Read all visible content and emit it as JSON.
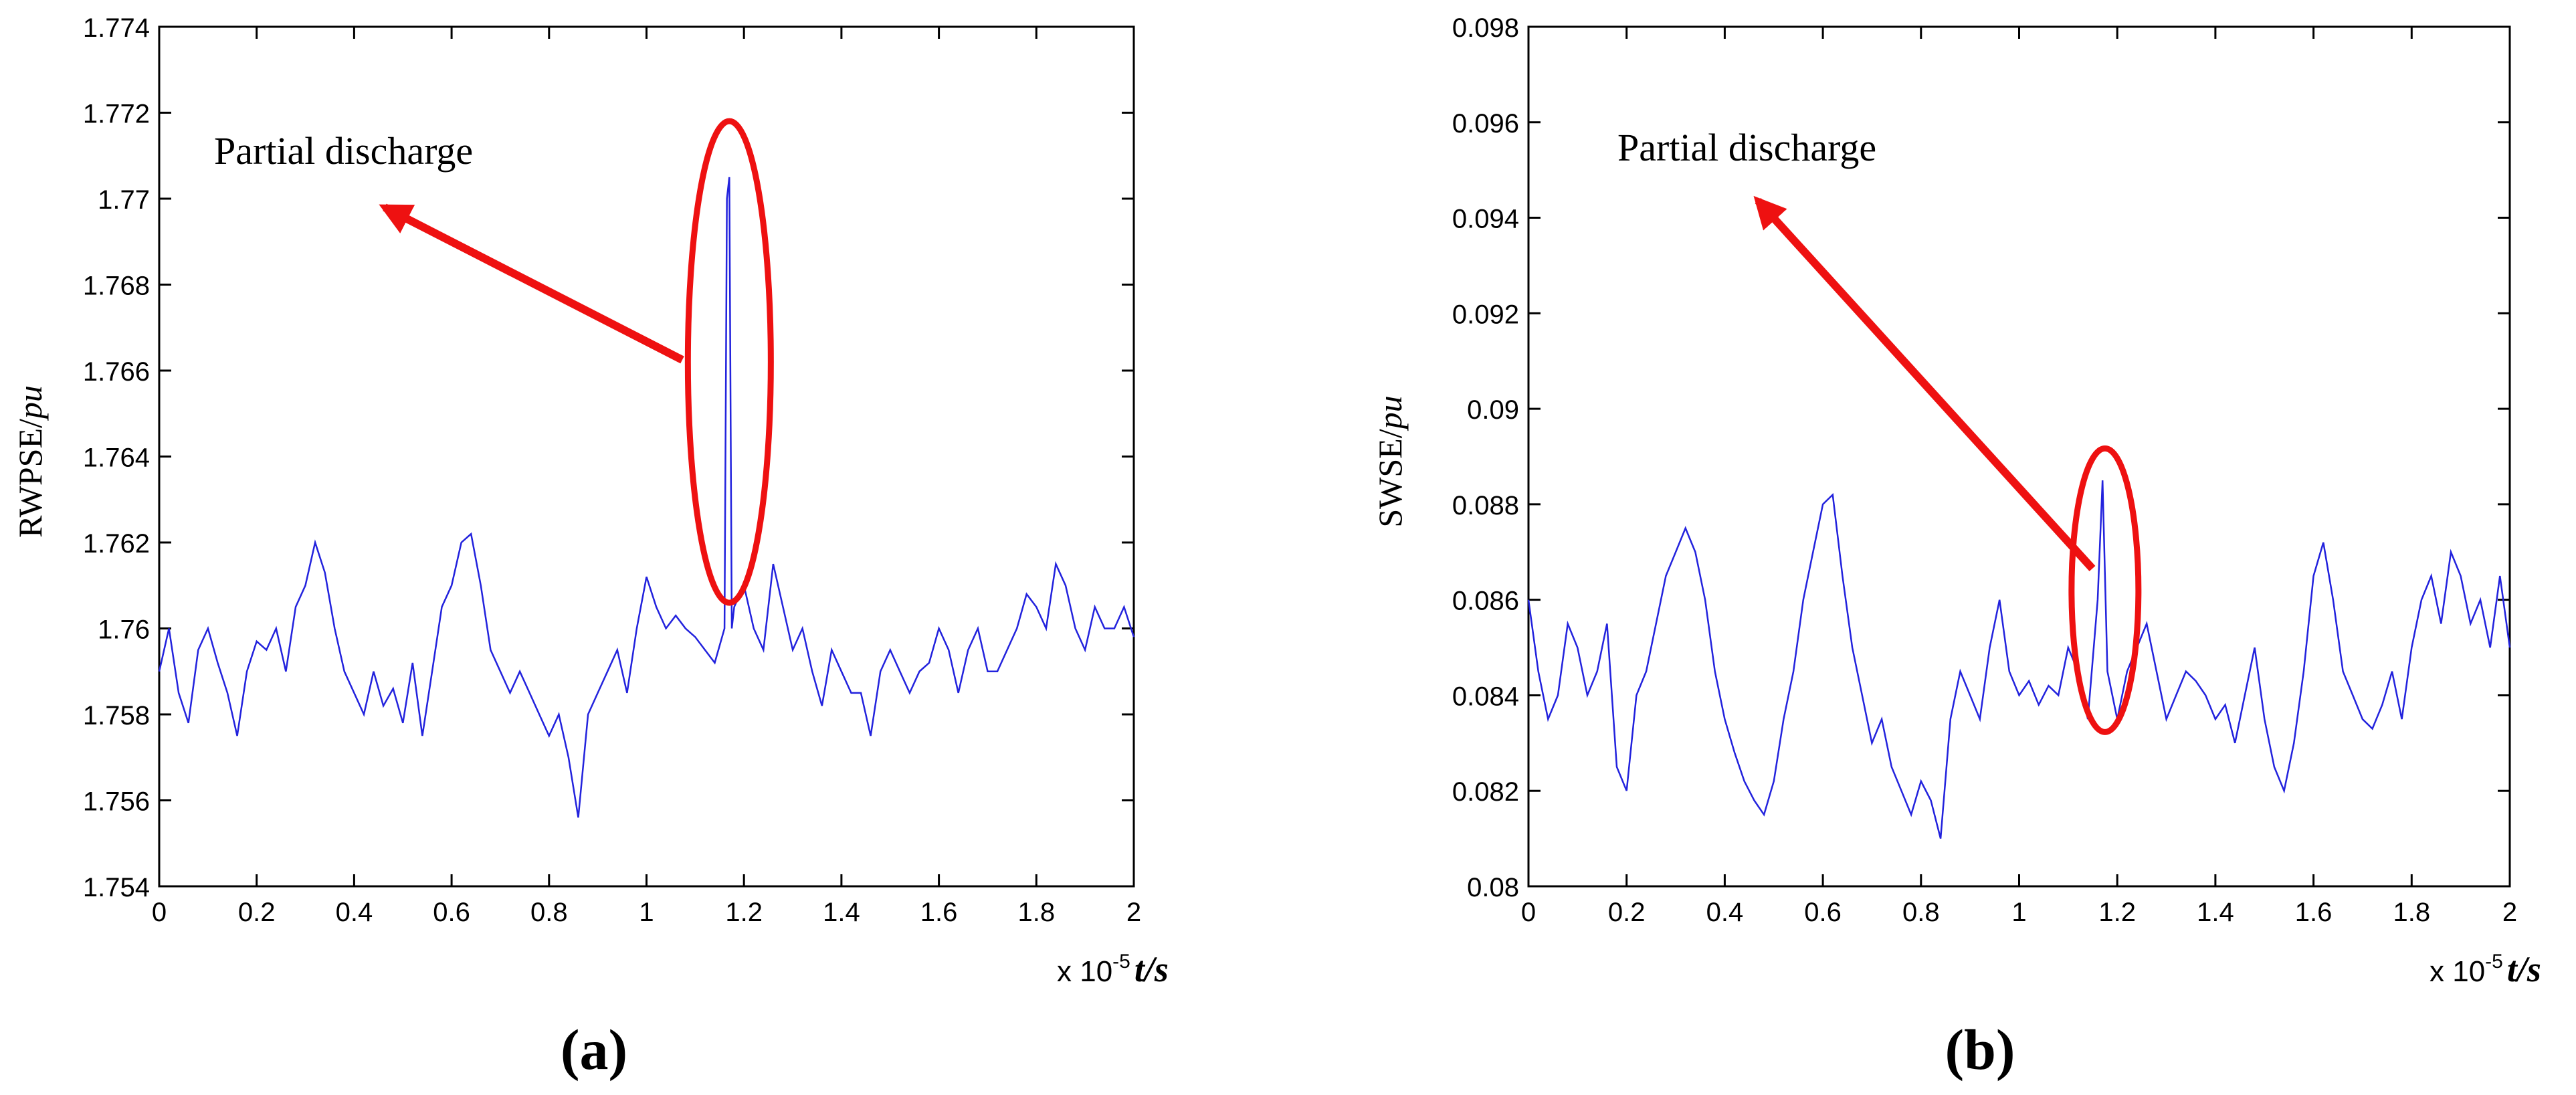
{
  "chart_data": [
    {
      "type": "line",
      "panel_label": "a",
      "ylabel_main": "RWPSE/",
      "ylabel_unit": "pu",
      "xlabel_exp": "x 10",
      "xlabel_power": "-5",
      "xlabel_var": "t/s",
      "xlim": [
        0,
        2
      ],
      "ylim": [
        1.754,
        1.774
      ],
      "x_ticks": [
        "0",
        "0.2",
        "0.4",
        "0.6",
        "0.8",
        "1",
        "1.2",
        "1.4",
        "1.6",
        "1.8",
        "2"
      ],
      "y_ticks": [
        "1.754",
        "1.756",
        "1.758",
        "1.76",
        "1.762",
        "1.764",
        "1.766",
        "1.768",
        "1.77",
        "1.772",
        "1.774"
      ],
      "annotation": "Partial discharge",
      "line_color": "#2222dd",
      "highlight_color": "#ee1111",
      "series": [
        {
          "x": [
            0,
            0.02,
            0.04,
            0.06,
            0.08,
            0.1,
            0.12,
            0.14,
            0.16,
            0.18,
            0.2,
            0.22,
            0.24,
            0.26,
            0.28,
            0.3,
            0.32,
            0.34,
            0.36,
            0.38,
            0.4,
            0.42,
            0.44,
            0.46,
            0.48,
            0.5,
            0.52,
            0.54,
            0.56,
            0.58,
            0.6,
            0.62,
            0.64,
            0.66,
            0.68,
            0.7,
            0.72,
            0.74,
            0.76,
            0.78,
            0.8,
            0.82,
            0.84,
            0.86,
            0.88,
            0.9,
            0.92,
            0.94,
            0.96,
            0.98,
            1.0,
            1.02,
            1.04,
            1.06,
            1.08,
            1.1,
            1.12,
            1.14,
            1.16,
            1.165,
            1.17,
            1.175,
            1.18,
            1.2,
            1.22,
            1.24,
            1.26,
            1.28,
            1.3,
            1.32,
            1.34,
            1.36,
            1.38,
            1.4,
            1.42,
            1.44,
            1.46,
            1.48,
            1.5,
            1.52,
            1.54,
            1.56,
            1.58,
            1.6,
            1.62,
            1.64,
            1.66,
            1.68,
            1.7,
            1.72,
            1.74,
            1.76,
            1.78,
            1.8,
            1.82,
            1.84,
            1.86,
            1.88,
            1.9,
            1.92,
            1.94,
            1.96,
            1.98,
            2.0
          ],
          "y": [
            1.759,
            1.76,
            1.7585,
            1.7578,
            1.7595,
            1.76,
            1.7592,
            1.7585,
            1.7575,
            1.759,
            1.7597,
            1.7595,
            1.76,
            1.759,
            1.7605,
            1.761,
            1.762,
            1.7613,
            1.76,
            1.759,
            1.7585,
            1.758,
            1.759,
            1.7582,
            1.7586,
            1.7578,
            1.7592,
            1.7575,
            1.759,
            1.7605,
            1.761,
            1.762,
            1.7622,
            1.761,
            1.7595,
            1.759,
            1.7585,
            1.759,
            1.7585,
            1.758,
            1.7575,
            1.758,
            1.757,
            1.7556,
            1.758,
            1.7585,
            1.759,
            1.7595,
            1.7585,
            1.76,
            1.7612,
            1.7605,
            1.76,
            1.7603,
            1.76,
            1.7598,
            1.7595,
            1.7592,
            1.76,
            1.77,
            1.7705,
            1.76,
            1.7605,
            1.761,
            1.76,
            1.7595,
            1.7615,
            1.7605,
            1.7595,
            1.76,
            1.759,
            1.7582,
            1.7595,
            1.759,
            1.7585,
            1.7585,
            1.7575,
            1.759,
            1.7595,
            1.759,
            1.7585,
            1.759,
            1.7592,
            1.76,
            1.7595,
            1.7585,
            1.7595,
            1.76,
            1.759,
            1.759,
            1.7595,
            1.76,
            1.7608,
            1.7605,
            1.76,
            1.7615,
            1.761,
            1.76,
            1.7595,
            1.7605,
            1.76,
            1.76,
            1.7605,
            1.7598
          ]
        }
      ]
    },
    {
      "type": "line",
      "panel_label": "b",
      "ylabel_main": "SWSE/",
      "ylabel_unit": "pu",
      "xlabel_exp": "x 10",
      "xlabel_power": "-5",
      "xlabel_var": "t/s",
      "xlim": [
        0,
        2
      ],
      "ylim": [
        0.08,
        0.098
      ],
      "x_ticks": [
        "0",
        "0.2",
        "0.4",
        "0.6",
        "0.8",
        "1",
        "1.2",
        "1.4",
        "1.6",
        "1.8",
        "2"
      ],
      "y_ticks": [
        "0.08",
        "0.082",
        "0.084",
        "0.086",
        "0.088",
        "0.09",
        "0.092",
        "0.094",
        "0.096",
        "0.098"
      ],
      "annotation": "Partial discharge",
      "line_color": "#2222dd",
      "highlight_color": "#ee1111",
      "series": [
        {
          "x": [
            0,
            0.02,
            0.04,
            0.06,
            0.08,
            0.1,
            0.12,
            0.14,
            0.16,
            0.18,
            0.2,
            0.22,
            0.24,
            0.26,
            0.28,
            0.3,
            0.32,
            0.34,
            0.36,
            0.38,
            0.4,
            0.42,
            0.44,
            0.46,
            0.48,
            0.5,
            0.52,
            0.54,
            0.56,
            0.58,
            0.6,
            0.62,
            0.64,
            0.66,
            0.68,
            0.7,
            0.72,
            0.74,
            0.76,
            0.78,
            0.8,
            0.82,
            0.84,
            0.86,
            0.88,
            0.9,
            0.92,
            0.94,
            0.96,
            0.98,
            1.0,
            1.02,
            1.04,
            1.06,
            1.08,
            1.1,
            1.12,
            1.14,
            1.16,
            1.17,
            1.18,
            1.2,
            1.22,
            1.24,
            1.26,
            1.28,
            1.3,
            1.32,
            1.34,
            1.36,
            1.38,
            1.4,
            1.42,
            1.44,
            1.46,
            1.48,
            1.5,
            1.52,
            1.54,
            1.56,
            1.58,
            1.6,
            1.62,
            1.64,
            1.66,
            1.68,
            1.7,
            1.72,
            1.74,
            1.76,
            1.78,
            1.8,
            1.82,
            1.84,
            1.86,
            1.88,
            1.9,
            1.92,
            1.94,
            1.96,
            1.98,
            2.0
          ],
          "y": [
            0.086,
            0.0845,
            0.0835,
            0.084,
            0.0855,
            0.085,
            0.084,
            0.0845,
            0.0855,
            0.0825,
            0.082,
            0.084,
            0.0845,
            0.0855,
            0.0865,
            0.087,
            0.0875,
            0.087,
            0.086,
            0.0845,
            0.0835,
            0.0828,
            0.0822,
            0.0818,
            0.0815,
            0.0822,
            0.0835,
            0.0845,
            0.086,
            0.087,
            0.088,
            0.0882,
            0.0865,
            0.085,
            0.084,
            0.083,
            0.0835,
            0.0825,
            0.082,
            0.0815,
            0.0822,
            0.0818,
            0.081,
            0.0835,
            0.0845,
            0.084,
            0.0835,
            0.085,
            0.086,
            0.0845,
            0.084,
            0.0843,
            0.0838,
            0.0842,
            0.084,
            0.085,
            0.0845,
            0.0835,
            0.086,
            0.0885,
            0.0845,
            0.0835,
            0.0845,
            0.085,
            0.0855,
            0.0845,
            0.0835,
            0.084,
            0.0845,
            0.0843,
            0.084,
            0.0835,
            0.0838,
            0.083,
            0.084,
            0.085,
            0.0835,
            0.0825,
            0.082,
            0.083,
            0.0845,
            0.0865,
            0.0872,
            0.086,
            0.0845,
            0.084,
            0.0835,
            0.0833,
            0.0838,
            0.0845,
            0.0835,
            0.085,
            0.086,
            0.0865,
            0.0855,
            0.087,
            0.0865,
            0.0855,
            0.086,
            0.085,
            0.0865,
            0.085
          ]
        }
      ]
    }
  ]
}
